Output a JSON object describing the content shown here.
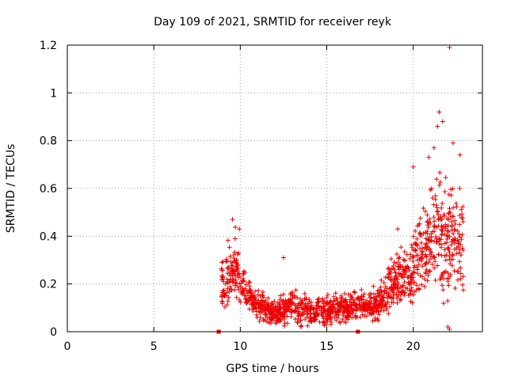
{
  "chart_data": {
    "type": "scatter",
    "title": "Day 109 of 2021, SRMTID for receiver reyk",
    "xlabel": "GPS time / hours",
    "ylabel": "SRMTID / TECUs",
    "xlim": [
      0,
      24
    ],
    "ylim": [
      0,
      1.2
    ],
    "xticks": [
      0,
      5,
      10,
      15,
      20
    ],
    "xtick_labels": [
      "0",
      "5",
      "10",
      "15",
      "20"
    ],
    "yticks": [
      0,
      0.2,
      0.4,
      0.6,
      0.8,
      1.0,
      1.2
    ],
    "ytick_labels": [
      "0",
      "0.2",
      "0.4",
      "0.6",
      "0.8",
      "1",
      "1.2"
    ],
    "grid": true,
    "marker": "plus",
    "color": "#ee0000",
    "zero_markers": [
      8.75,
      16.8
    ],
    "envelope": [
      {
        "x": 8.9,
        "median": 0.17,
        "spread": 0.09
      },
      {
        "x": 9.3,
        "median": 0.23,
        "spread": 0.12
      },
      {
        "x": 9.7,
        "median": 0.27,
        "spread": 0.12
      },
      {
        "x": 10.0,
        "median": 0.21,
        "spread": 0.08
      },
      {
        "x": 10.5,
        "median": 0.15,
        "spread": 0.06
      },
      {
        "x": 11.0,
        "median": 0.11,
        "spread": 0.05
      },
      {
        "x": 11.5,
        "median": 0.09,
        "spread": 0.05
      },
      {
        "x": 12.0,
        "median": 0.08,
        "spread": 0.05
      },
      {
        "x": 12.5,
        "median": 0.09,
        "spread": 0.06
      },
      {
        "x": 13.0,
        "median": 0.1,
        "spread": 0.06
      },
      {
        "x": 14.0,
        "median": 0.09,
        "spread": 0.05
      },
      {
        "x": 15.0,
        "median": 0.09,
        "spread": 0.05
      },
      {
        "x": 16.0,
        "median": 0.1,
        "spread": 0.05
      },
      {
        "x": 17.0,
        "median": 0.11,
        "spread": 0.05
      },
      {
        "x": 18.0,
        "median": 0.12,
        "spread": 0.06
      },
      {
        "x": 18.5,
        "median": 0.17,
        "spread": 0.08
      },
      {
        "x": 19.0,
        "median": 0.2,
        "spread": 0.1
      },
      {
        "x": 19.5,
        "median": 0.22,
        "spread": 0.1
      },
      {
        "x": 20.0,
        "median": 0.27,
        "spread": 0.14
      },
      {
        "x": 20.5,
        "median": 0.32,
        "spread": 0.16
      },
      {
        "x": 21.0,
        "median": 0.4,
        "spread": 0.2
      },
      {
        "x": 21.5,
        "median": 0.45,
        "spread": 0.22
      },
      {
        "x": 22.0,
        "median": 0.38,
        "spread": 0.22
      },
      {
        "x": 22.5,
        "median": 0.4,
        "spread": 0.18
      },
      {
        "x": 22.9,
        "median": 0.36,
        "spread": 0.16
      }
    ],
    "highlights": [
      {
        "x": 9.55,
        "y": 0.47
      },
      {
        "x": 9.95,
        "y": 0.43
      },
      {
        "x": 12.5,
        "y": 0.31
      },
      {
        "x": 19.1,
        "y": 0.43
      },
      {
        "x": 20.0,
        "y": 0.69
      },
      {
        "x": 20.9,
        "y": 0.73
      },
      {
        "x": 21.2,
        "y": 0.77
      },
      {
        "x": 21.4,
        "y": 0.86
      },
      {
        "x": 21.5,
        "y": 0.92
      },
      {
        "x": 21.7,
        "y": 0.88
      },
      {
        "x": 22.1,
        "y": 1.19
      },
      {
        "x": 22.3,
        "y": 0.79
      },
      {
        "x": 22.7,
        "y": 0.74
      },
      {
        "x": 22.0,
        "y": 0.02
      },
      {
        "x": 22.1,
        "y": 0.01
      }
    ],
    "point_count": 1400
  }
}
